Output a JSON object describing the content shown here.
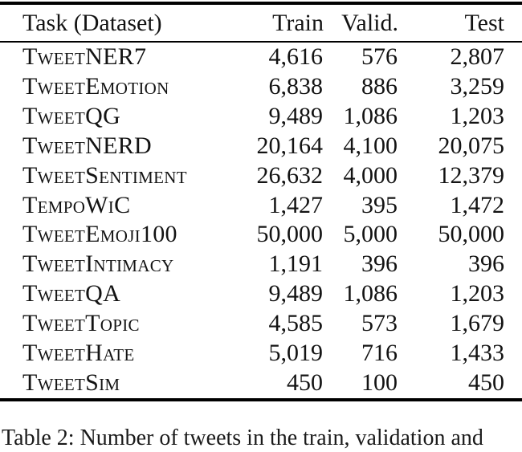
{
  "table": {
    "columns": [
      {
        "key": "task",
        "label": "Task (Dataset)"
      },
      {
        "key": "train",
        "label": "Train"
      },
      {
        "key": "valid",
        "label": "Valid."
      },
      {
        "key": "test",
        "label": "Test"
      }
    ],
    "rows": [
      {
        "task": "TweetNER7",
        "train": "4,616",
        "valid": "576",
        "test": "2,807"
      },
      {
        "task": "TweetEmotion",
        "train": "6,838",
        "valid": "886",
        "test": "3,259"
      },
      {
        "task": "TweetQG",
        "train": "9,489",
        "valid": "1,086",
        "test": "1,203"
      },
      {
        "task": "TweetNERD",
        "train": "20,164",
        "valid": "4,100",
        "test": "20,075"
      },
      {
        "task": "TweetSentiment",
        "train": "26,632",
        "valid": "4,000",
        "test": "12,379"
      },
      {
        "task": "TempoWiC",
        "train": "1,427",
        "valid": "395",
        "test": "1,472"
      },
      {
        "task": "TweetEmoji100",
        "train": "50,000",
        "valid": "5,000",
        "test": "50,000"
      },
      {
        "task": "TweetIntimacy",
        "train": "1,191",
        "valid": "396",
        "test": "396"
      },
      {
        "task": "TweetQA",
        "train": "9,489",
        "valid": "1,086",
        "test": "1,203"
      },
      {
        "task": "TweetTopic",
        "train": "4,585",
        "valid": "573",
        "test": "1,679"
      },
      {
        "task": "TweetHate",
        "train": "5,019",
        "valid": "716",
        "test": "1,433"
      },
      {
        "task": "TweetSim",
        "train": "450",
        "valid": "100",
        "test": "450"
      }
    ]
  },
  "caption": {
    "text": "Table 2: Number of tweets in the train, validation and"
  },
  "colors": {
    "text": "#131313",
    "rule": "#000000",
    "background": "#ffffff"
  }
}
